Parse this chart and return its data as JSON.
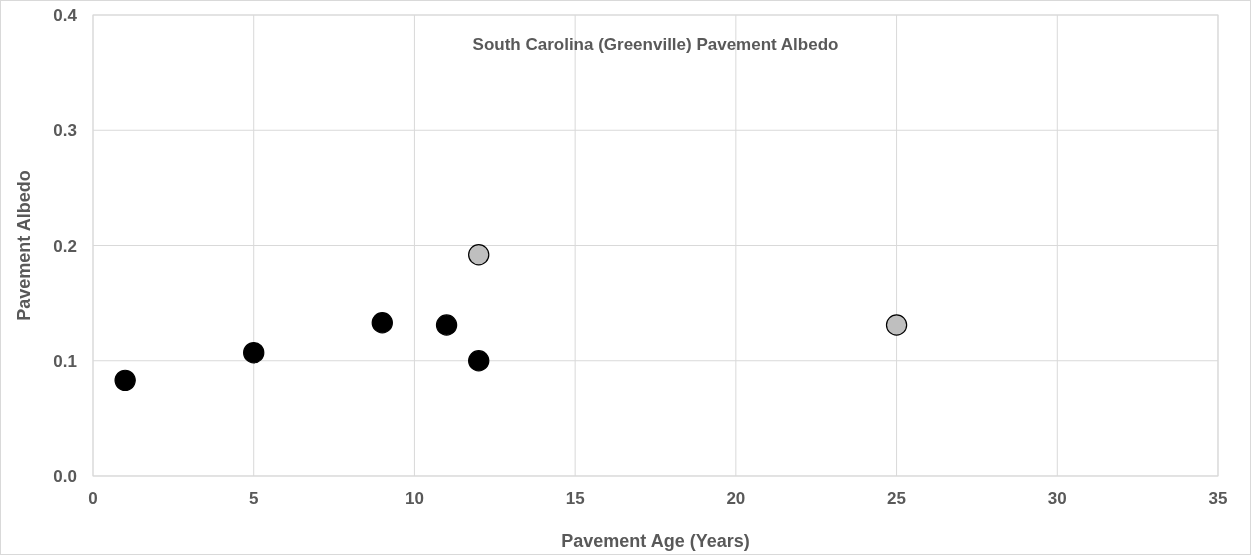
{
  "chart_data": {
    "type": "scatter",
    "title": "South Carolina (Greenville) Pavement Albedo",
    "xlabel": "Pavement Age (Years)",
    "ylabel": "Pavement Albedo",
    "series": [
      {
        "color": "#000000",
        "x": [
          1,
          5,
          9,
          11,
          12
        ],
        "values": [
          0.083,
          0.107,
          0.133,
          0.131,
          0.1
        ]
      },
      {
        "color": "#bfbfbf",
        "x": [
          12,
          25
        ],
        "values": [
          0.192,
          0.131
        ]
      }
    ],
    "xlim": [
      0,
      35
    ],
    "xticks": [
      0,
      5,
      10,
      15,
      20,
      25,
      30,
      35
    ],
    "ylim": [
      0,
      0.4
    ],
    "yticks": [
      {
        "value": 0,
        "label": "0.0"
      },
      {
        "value": 0.1,
        "label": "0.1"
      },
      {
        "value": 0.2,
        "label": "0.2"
      },
      {
        "value": 0.3,
        "label": "0.3"
      },
      {
        "value": 0.4,
        "label": "0.4"
      }
    ],
    "grid": true,
    "marker": "circle"
  }
}
